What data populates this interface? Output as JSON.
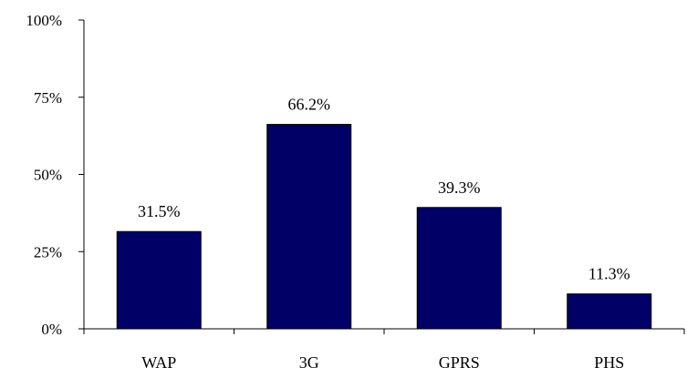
{
  "chart_data": {
    "type": "bar",
    "categories": [
      "WAP",
      "3G",
      "GPRS",
      "PHS"
    ],
    "values": [
      31.5,
      66.2,
      39.3,
      11.3
    ],
    "data_labels": [
      "31.5%",
      "66.2%",
      "39.3%",
      "11.3%"
    ],
    "y_ticks": [
      0,
      25,
      50,
      75,
      100
    ],
    "y_tick_labels": [
      "0%",
      "25%",
      "50%",
      "75%",
      "100%"
    ],
    "ylim": [
      0,
      100
    ],
    "title": "",
    "xlabel": "",
    "ylabel": "",
    "grid": false,
    "legend": "none",
    "bar_color": "#000066",
    "axis_color": "#000000"
  }
}
